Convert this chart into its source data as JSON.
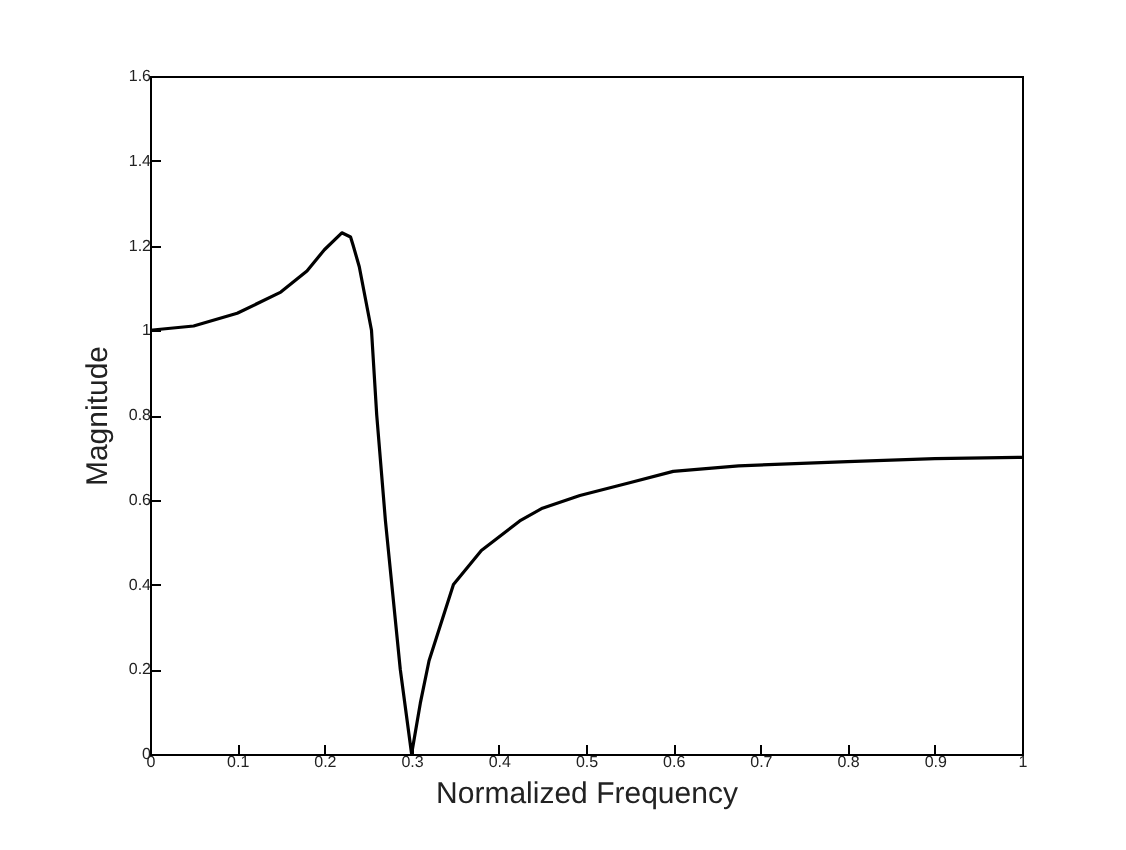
{
  "chart_data": {
    "type": "line",
    "xlabel": "Normalized Frequency",
    "ylabel": "Magnitude",
    "x": [
      0,
      0.05,
      0.1,
      0.15,
      0.18,
      0.2,
      0.22,
      0.23,
      0.233,
      0.24,
      0.254,
      0.26,
      0.27,
      0.287,
      0.3,
      0.31,
      0.32,
      0.348,
      0.38,
      0.424,
      0.45,
      0.493,
      0.55,
      0.6,
      0.675,
      0.8,
      0.9,
      1
    ],
    "series": [
      {
        "color": "#000000",
        "values": [
          1.0,
          1.01,
          1.04,
          1.09,
          1.14,
          1.19,
          1.23,
          1.22,
          1.2,
          1.15,
          1.0,
          0.8,
          0.55,
          0.2,
          0.0,
          0.12,
          0.22,
          0.4,
          0.48,
          0.55,
          0.58,
          0.61,
          0.64,
          0.667,
          0.68,
          0.69,
          0.697,
          0.7
        ]
      }
    ],
    "xlim": [
      0,
      1
    ],
    "xticks": [
      0,
      0.1,
      0.2,
      0.3,
      0.4,
      0.5,
      0.6,
      0.7,
      0.8,
      0.9,
      1
    ],
    "ylim": [
      0,
      1.6
    ],
    "yticks": [
      0,
      0.2,
      0.4,
      0.6,
      0.8,
      1,
      1.2,
      1.4,
      1.6
    ],
    "grid": false,
    "line_style": "solid",
    "marker": "none"
  }
}
